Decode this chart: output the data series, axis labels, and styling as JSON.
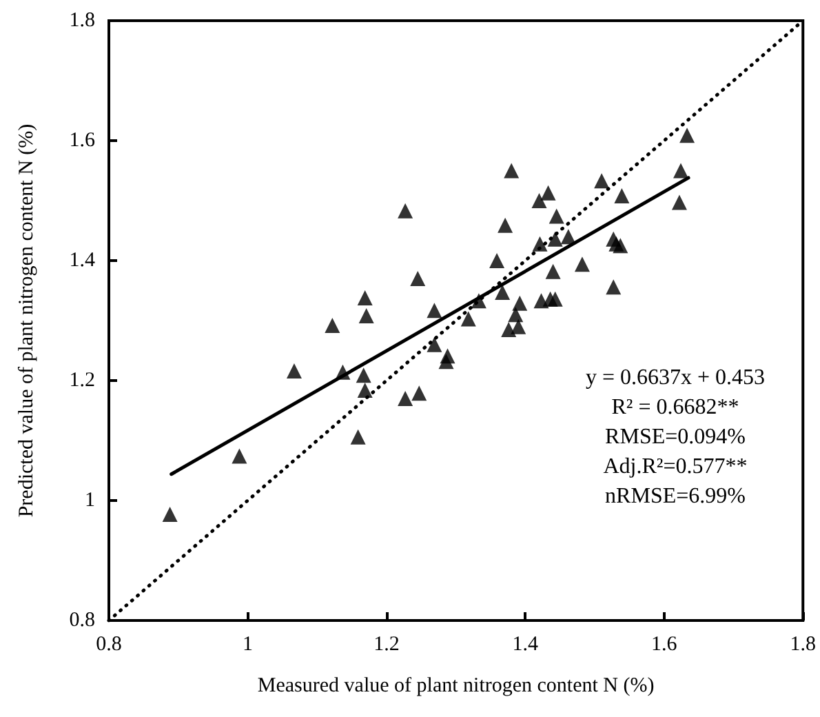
{
  "chart_data": {
    "type": "scatter",
    "xlabel": "Measured value of plant nitrogen content N (%)",
    "ylabel": "Predicted value of plant nitrogen content N (%)",
    "xlim": [
      0.8,
      1.8
    ],
    "ylim": [
      0.8,
      1.8
    ],
    "xticks": [
      0.8,
      1,
      1.2,
      1.4,
      1.6,
      1.8
    ],
    "yticks": [
      0.8,
      1,
      1.2,
      1.4,
      1.6,
      1.8
    ],
    "grid": false,
    "series": [
      {
        "marker": "triangle",
        "color": "#000000",
        "x": [
          0.888,
          0.988,
          1.067,
          1.122,
          1.137,
          1.159,
          1.169,
          1.171,
          1.167,
          1.169,
          1.227,
          1.227,
          1.245,
          1.247,
          1.269,
          1.269,
          1.286,
          1.288,
          1.318,
          1.333,
          1.359,
          1.367,
          1.371,
          1.38,
          1.376,
          1.39,
          1.392,
          1.386,
          1.42,
          1.433,
          1.421,
          1.423,
          1.436,
          1.443,
          1.44,
          1.445,
          1.443,
          1.462,
          1.482,
          1.51,
          1.527,
          1.531,
          1.537,
          1.527,
          1.539,
          1.622,
          1.624,
          1.633
        ],
        "values": [
          0.977,
          1.074,
          1.216,
          1.292,
          1.214,
          1.106,
          1.338,
          1.308,
          1.209,
          1.184,
          1.483,
          1.17,
          1.37,
          1.179,
          1.26,
          1.317,
          1.232,
          1.241,
          1.303,
          1.333,
          1.4,
          1.347,
          1.459,
          1.55,
          1.285,
          1.29,
          1.329,
          1.31,
          1.5,
          1.513,
          1.428,
          1.333,
          1.336,
          1.336,
          1.382,
          1.474,
          1.436,
          1.44,
          1.394,
          1.533,
          1.436,
          1.428,
          1.425,
          1.356,
          1.508,
          1.497,
          1.55,
          1.609
        ]
      },
      {
        "type": "line",
        "marker": "none",
        "line_style": "solid",
        "color": "#000000",
        "x": [
          0.89,
          1.635
        ],
        "values": [
          1.044,
          1.538
        ]
      },
      {
        "type": "line",
        "marker": "none",
        "line_style": "dotted",
        "color": "#000000",
        "x": [
          0.8,
          1.8
        ],
        "values": [
          0.8,
          1.8
        ]
      }
    ],
    "annotations": [
      "y = 0.6637x + 0.453",
      "R² = 0.6682**",
      "RMSE=0.094%",
      "Adj.R²=0.577**",
      "nRMSE=6.99%"
    ]
  }
}
